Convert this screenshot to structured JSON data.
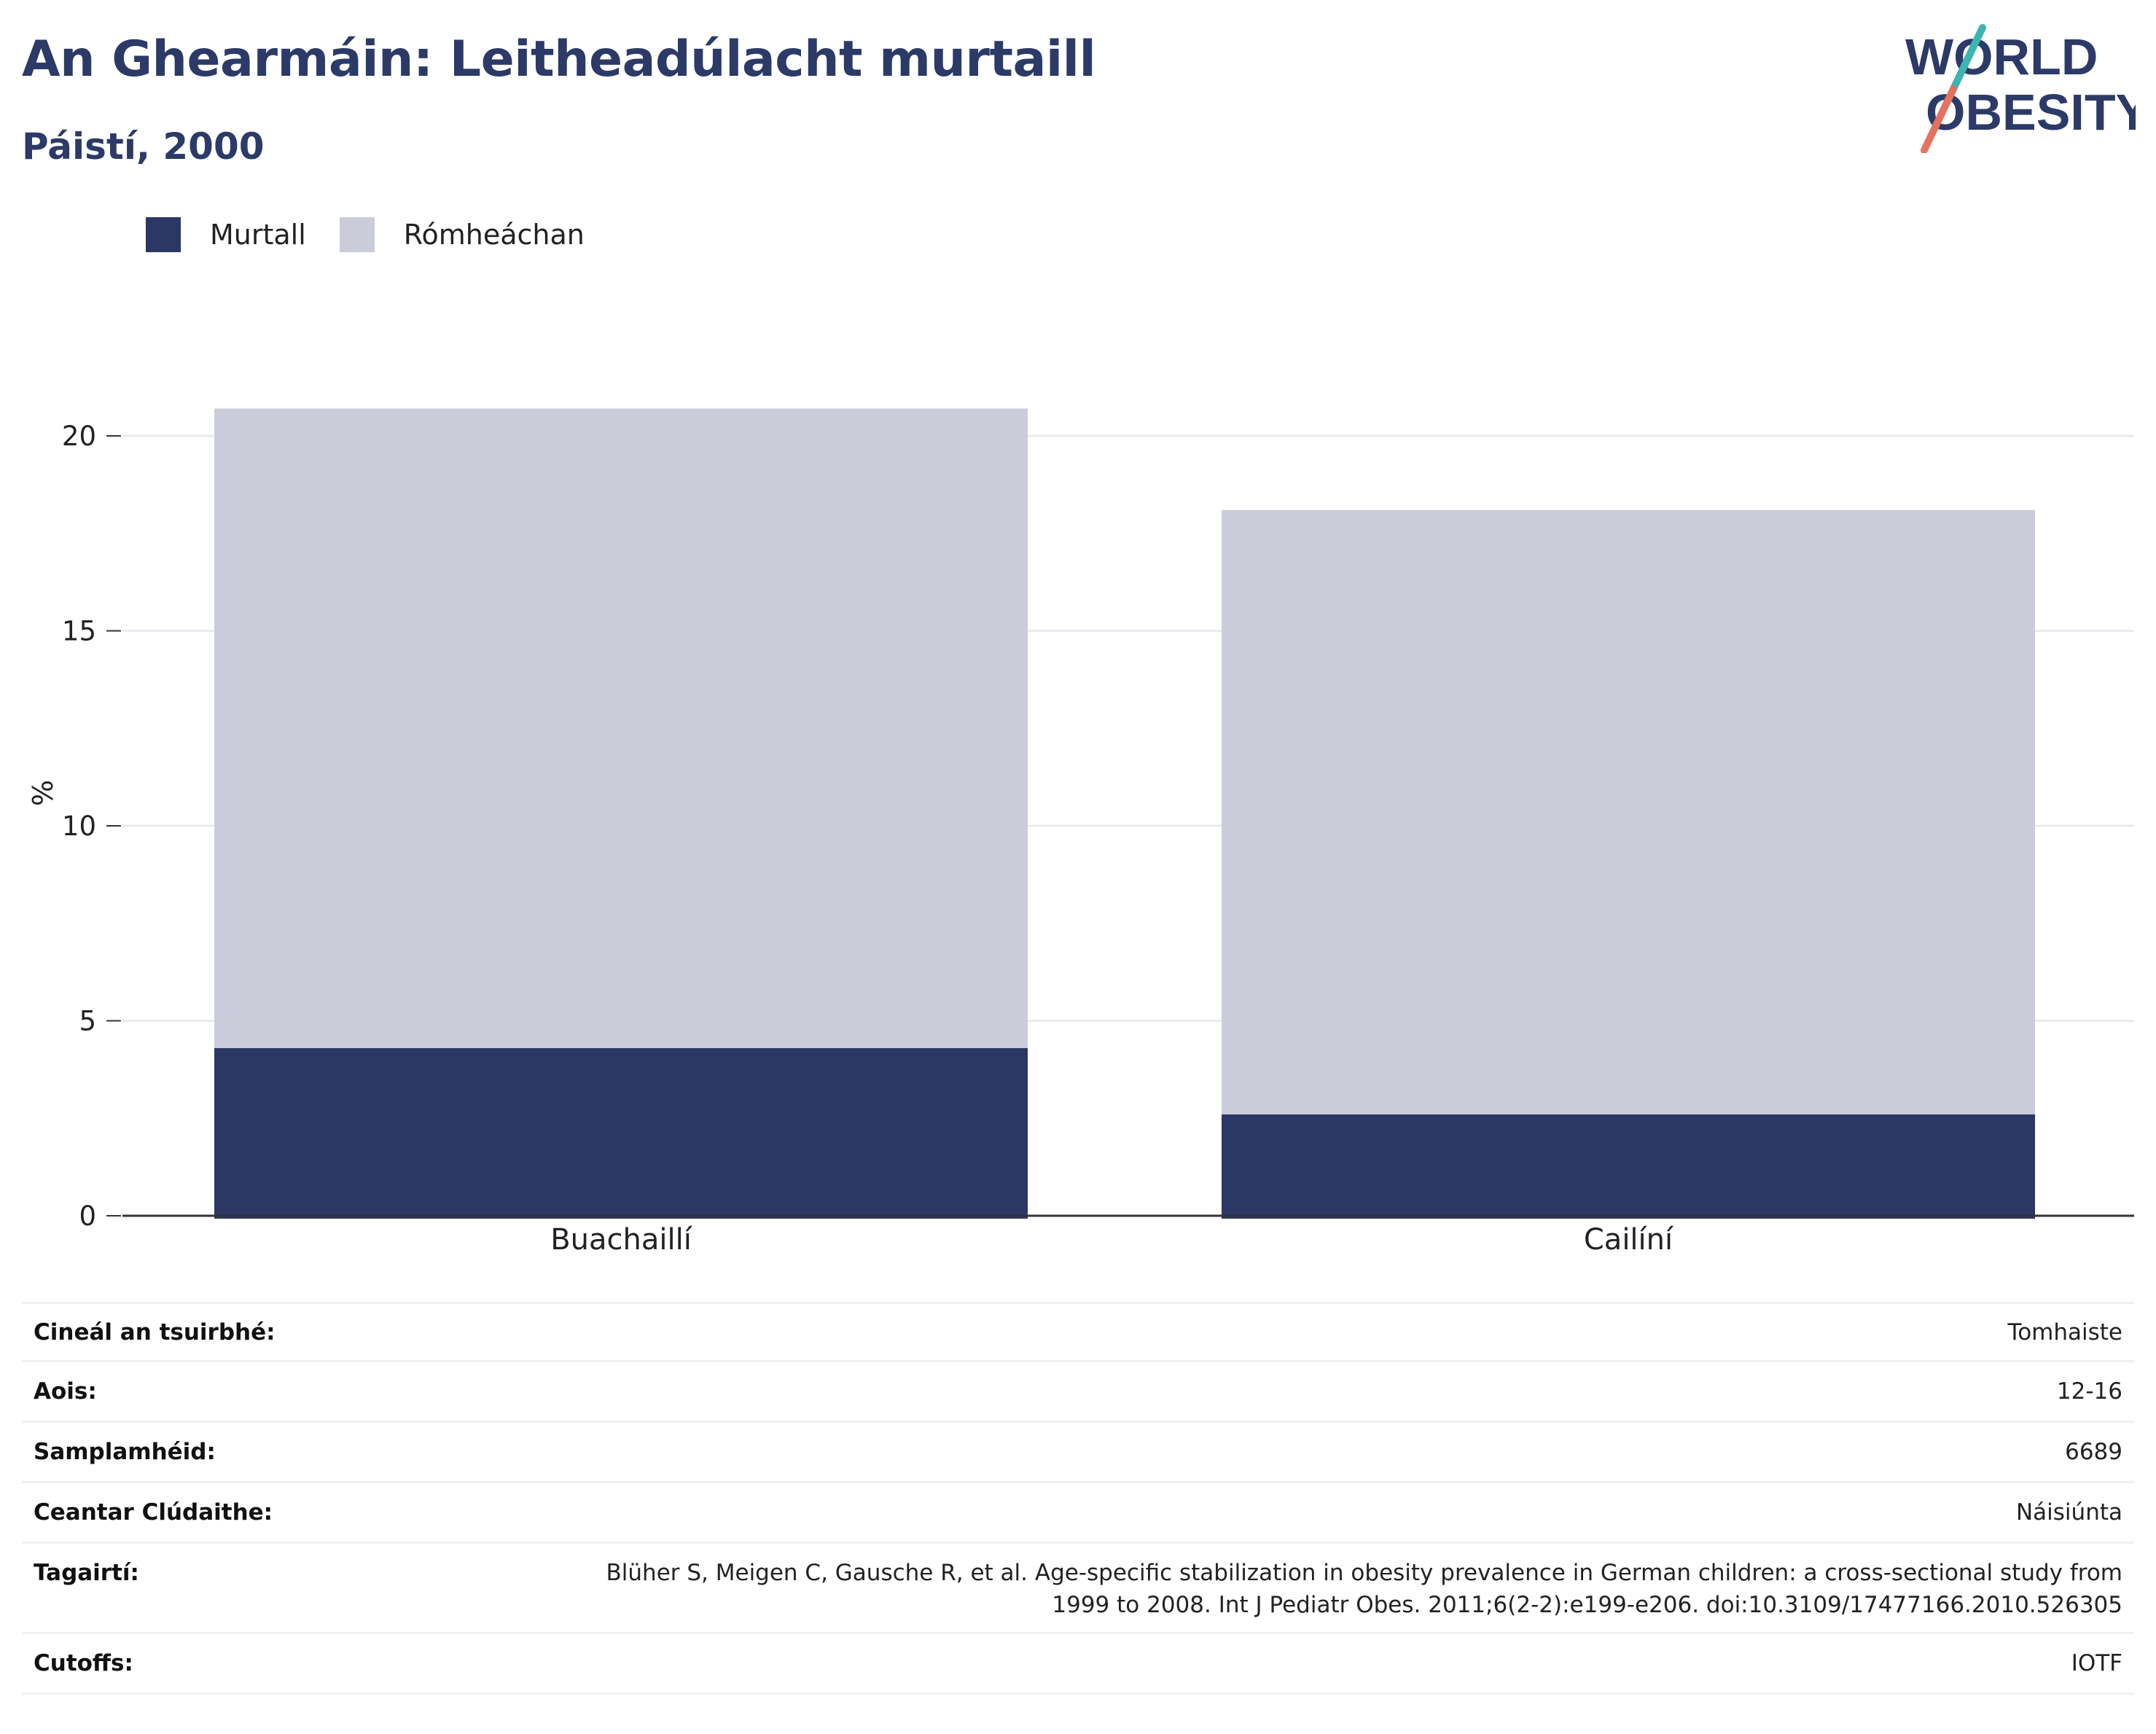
{
  "header": {
    "title": "An Ghearmáin: Leitheadúlacht murtaill",
    "subtitle": "Páistí, 2000"
  },
  "logo": {
    "line1": "WORLD",
    "line2": "OBESITY"
  },
  "colors": {
    "obese": "#2b3765",
    "overweight": "#cacdd9",
    "title": "#2b3a67",
    "grid": "#e8eaef",
    "axis": "#333333",
    "logo_teal": "#3bb5b0",
    "logo_coral": "#e4725f"
  },
  "legend": [
    {
      "label": "Murtall",
      "color": "#2b3765"
    },
    {
      "label": "Rómheáchan",
      "color": "#cacdd9"
    }
  ],
  "chart_data": {
    "type": "bar",
    "stacked": true,
    "categories": [
      "Buachaillí",
      "Cailíní"
    ],
    "series": [
      {
        "name": "Murtall",
        "values": [
          4.3,
          2.6
        ]
      },
      {
        "name": "Rómheáchan",
        "values": [
          16.4,
          15.5
        ]
      }
    ],
    "totals": [
      20.7,
      18.1
    ],
    "ylabel": "%",
    "ylim": [
      0,
      22
    ],
    "yticks": [
      0,
      5,
      10,
      15,
      20
    ],
    "grid": true,
    "legend_position": "top-left"
  },
  "meta": [
    {
      "label": "Cineál an tsuirbhé:",
      "value": "Tomhaiste"
    },
    {
      "label": "Aois:",
      "value": "12-16"
    },
    {
      "label": "Samplamhéid:",
      "value": "6689"
    },
    {
      "label": "Ceantar Clúdaithe:",
      "value": "Náisiúnta"
    },
    {
      "label": "Tagairtí:",
      "value_lines": [
        "Blüher S, Meigen C, Gausche R, et al. Age-specific stabilization in obesity prevalence in German children: a cross-sectional study from",
        "1999 to 2008. Int J Pediatr Obes. 2011;6(2-2):e199-e206. doi:10.3109/17477166.2010.526305"
      ]
    },
    {
      "label": "Cutoffs:",
      "value": "IOTF"
    }
  ]
}
